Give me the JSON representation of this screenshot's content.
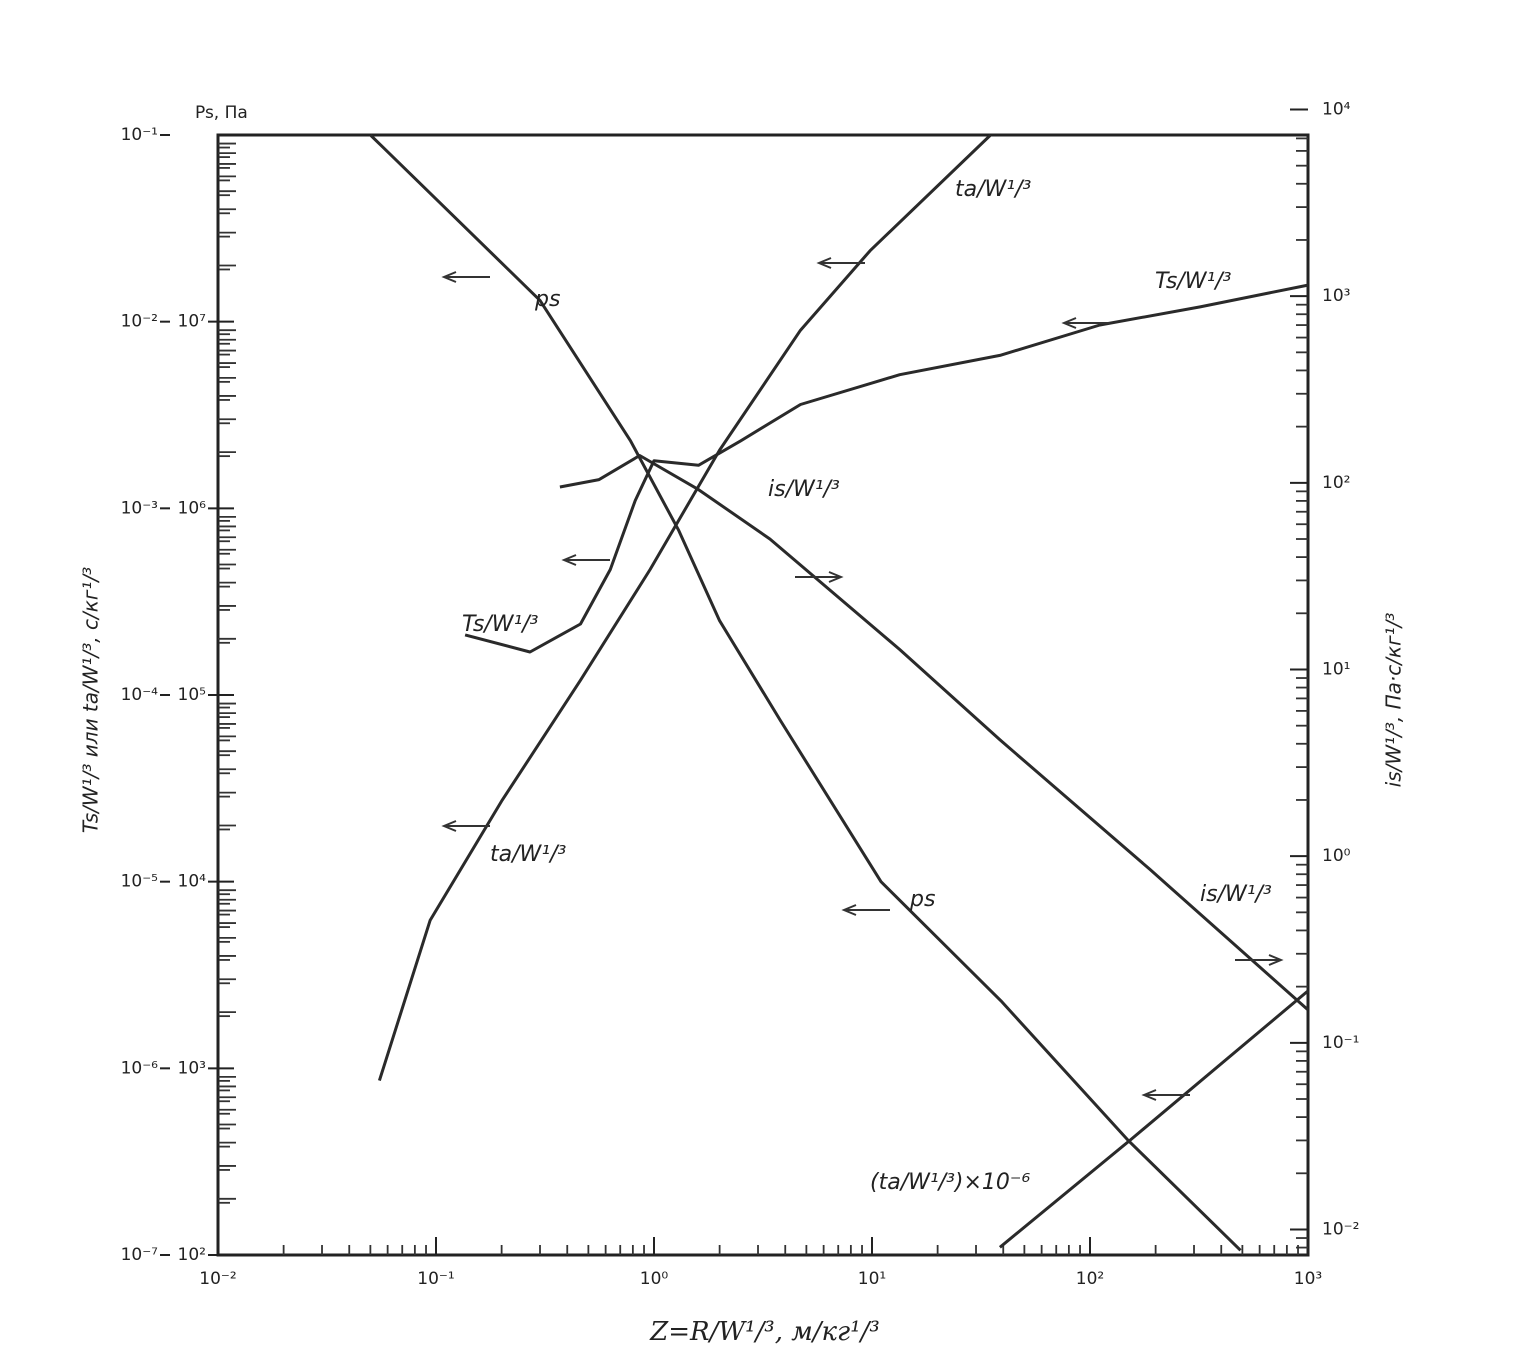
{
  "chart_data": {
    "type": "line",
    "log_x": true,
    "log_y": true,
    "minor_ticks": true,
    "xlabel": "Z=R/W¹/³, м/кг¹/³",
    "ylabel": "Ps, Па",
    "y2label": "is/W¹/³, Па·с/кг¹/³",
    "y3label": "Ts/W¹/³ или ta/W¹/³, с/кг¹/³",
    "xlim": [
      0.01,
      1000
    ],
    "xticks": [
      {
        "value": 0.01,
        "label": "10⁻²"
      },
      {
        "value": 0.1,
        "label": "10⁻¹"
      },
      {
        "value": 1,
        "label": "10⁰"
      },
      {
        "value": 10,
        "label": "10¹"
      },
      {
        "value": 100,
        "label": "10²"
      },
      {
        "value": 1000,
        "label": "10³"
      }
    ],
    "ylim": [
      100,
      100000000
    ],
    "yticks": [
      {
        "value": 100,
        "label": "10²"
      },
      {
        "value": 1000,
        "label": "10³"
      },
      {
        "value": 10000,
        "label": "10⁴"
      },
      {
        "value": 100000,
        "label": "10⁵"
      },
      {
        "value": 1000000,
        "label": "10⁶"
      },
      {
        "value": 10000000,
        "label": "10⁷"
      }
    ],
    "y3lim": [
      1e-07,
      0.1
    ],
    "y3ticks": [
      {
        "value": 1e-07,
        "label": "10⁻⁷"
      },
      {
        "value": 1e-06,
        "label": "10⁻⁶"
      },
      {
        "value": 1e-05,
        "label": "10⁻⁵"
      },
      {
        "value": 0.0001,
        "label": "10⁻⁴"
      },
      {
        "value": 0.001,
        "label": "10⁻³"
      },
      {
        "value": 0.01,
        "label": "10⁻²"
      },
      {
        "value": 0.1,
        "label": "10⁻¹"
      }
    ],
    "y2lim": [
      0.0073,
      7300
    ],
    "y2ticks": [
      {
        "value": 0.01,
        "label": "10⁻²"
      },
      {
        "value": 0.1,
        "label": "10⁻¹"
      },
      {
        "value": 1,
        "label": "10⁰"
      },
      {
        "value": 10,
        "label": "10¹"
      },
      {
        "value": 100,
        "label": "10²"
      },
      {
        "value": 1000,
        "label": "10³"
      },
      {
        "value": 10000,
        "label": "10⁴"
      }
    ],
    "series": [
      {
        "name": "ps",
        "color": "#2a2a2a",
        "axis": "y",
        "x": [
          0.05,
          0.3,
          0.78,
          1.3,
          2,
          3.8,
          11,
          39,
          150,
          490
        ],
        "values": [
          100000000,
          13000000,
          2300000,
          760000,
          250000,
          73000,
          10000,
          2300,
          410,
          106
        ]
      },
      {
        "name": "ta/W¹/³",
        "color": "#2a2a2a",
        "axis": "y3",
        "x": [
          0.055,
          0.094,
          0.2,
          0.46,
          0.96,
          2,
          4.7,
          9.8,
          35
        ],
        "values": [
          8.6e-07,
          6.2e-06,
          2.7e-05,
          0.00012,
          0.00047,
          0.00205,
          0.009,
          0.024,
          0.1
        ]
      },
      {
        "name": "Ts/W¹/³",
        "color": "#2a2a2a",
        "axis": "y3",
        "x": [
          0.136,
          0.27,
          0.46,
          0.63,
          0.82,
          1.0,
          1.6,
          2.5,
          4.7,
          13.4,
          38.6,
          111,
          320,
          1000
        ],
        "values": [
          0.00021,
          0.00017,
          0.00024,
          0.00047,
          0.0011,
          0.0018,
          0.0017,
          0.0023,
          0.0036,
          0.0052,
          0.0066,
          0.0096,
          0.012,
          0.0157
        ]
      },
      {
        "name": "is/W¹/³",
        "color": "#2a2a2a",
        "axis": "y2",
        "x": [
          0.37,
          0.56,
          0.86,
          1.6,
          3.4,
          13.4,
          38.6,
          188,
          1000
        ],
        "values": [
          95,
          104,
          140,
          92,
          50,
          12.8,
          4.2,
          0.85,
          0.15
        ]
      },
      {
        "name": "(ta/W¹/³)×10⁻⁶",
        "color": "#2a2a2a",
        "axis": "y3",
        "x": [
          38.6,
          152,
          1000
        ],
        "values": [
          1.1e-07,
          4.1e-07,
          2.6e-06
        ]
      }
    ],
    "annotations": [
      {
        "text": "ps"
      },
      {
        "text": "ta/W¹/³"
      },
      {
        "text": "Ts/W¹/³"
      },
      {
        "text": "is/W¹/³"
      }
    ]
  }
}
